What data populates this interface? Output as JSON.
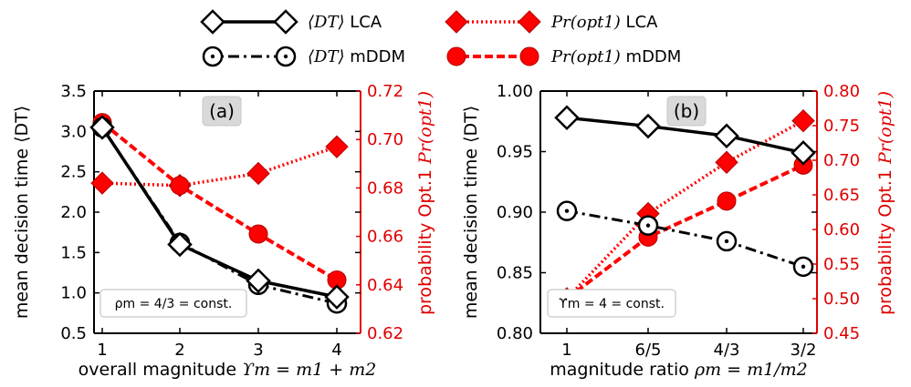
{
  "legend": {
    "items": [
      {
        "key": "dt_lca",
        "math": "⟨DT⟩",
        "suffix": " LCA",
        "color": "#000000",
        "marker": "diamond-open",
        "line": "solid"
      },
      {
        "key": "dt_mddm",
        "math": "⟨DT⟩",
        "suffix": " mDDM",
        "color": "#000000",
        "marker": "circle-open-dot",
        "line": "dashdot"
      },
      {
        "key": "pr_lca",
        "math": "Pr(opt1)",
        "suffix": " LCA",
        "color": "#ff0000",
        "marker": "diamond-filled",
        "line": "dotted"
      },
      {
        "key": "pr_mddm",
        "math": "Pr(opt1)",
        "suffix": " mDDM",
        "color": "#ff0000",
        "marker": "circle-filled",
        "line": "dashed"
      }
    ]
  },
  "chart_data": [
    {
      "type": "line",
      "panel_label": "(a)",
      "annotation": "ρm = 4/3 =  const.",
      "x_categories": [
        "1",
        "2",
        "3",
        "4"
      ],
      "xlabel_text": "overall magnitude ",
      "xlabel_math": "ϒm = m1 + m2",
      "ylabel_left": "mean decision time ⟨DT⟩",
      "ylabel_right_text": "probability Opt.1 ",
      "ylabel_right_math": "Pr(opt1)",
      "ylim_left": [
        0.5,
        3.5
      ],
      "yticks_left": [
        "0.5",
        "1.0",
        "1.5",
        "2.0",
        "2.5",
        "3.0",
        "3.5"
      ],
      "ylim_right": [
        0.62,
        0.72
      ],
      "yticks_right": [
        "0.62",
        "0.64",
        "0.66",
        "0.68",
        "0.70",
        "0.72"
      ],
      "series": [
        {
          "key": "dt_lca",
          "axis": "left",
          "values": [
            3.05,
            1.6,
            1.15,
            0.95
          ]
        },
        {
          "key": "dt_mddm",
          "axis": "left",
          "values": [
            3.05,
            1.62,
            1.1,
            0.87
          ]
        },
        {
          "key": "pr_lca",
          "axis": "right",
          "values": [
            0.682,
            0.681,
            0.686,
            0.697
          ]
        },
        {
          "key": "pr_mddm",
          "axis": "right",
          "values": [
            0.707,
            0.681,
            0.661,
            0.642
          ]
        }
      ]
    },
    {
      "type": "line",
      "panel_label": "(b)",
      "annotation": "ϒm = 4 =  const.",
      "x_categories": [
        "1",
        "6/5",
        "4/3",
        "3/2"
      ],
      "xlabel_text": "magnitude ratio ",
      "xlabel_math": "ρm = m1/m2",
      "ylabel_left": "mean decision time ⟨DT⟩",
      "ylabel_right_text": "probability Opt.1 ",
      "ylabel_right_math": "Pr(opt1)",
      "ylim_left": [
        0.8,
        1.0
      ],
      "yticks_left": [
        "0.80",
        "0.85",
        "0.90",
        "0.95",
        "1.00"
      ],
      "ylim_right": [
        0.45,
        0.8
      ],
      "yticks_right": [
        "0.45",
        "0.50",
        "0.55",
        "0.60",
        "0.65",
        "0.70",
        "0.75",
        "0.80"
      ],
      "series": [
        {
          "key": "dt_lca",
          "axis": "left",
          "values": [
            0.978,
            0.971,
            0.963,
            0.949
          ]
        },
        {
          "key": "dt_mddm",
          "axis": "left",
          "values": [
            0.901,
            0.889,
            0.876,
            0.855
          ]
        },
        {
          "key": "pr_lca",
          "axis": "right",
          "values": [
            0.5,
            0.623,
            0.697,
            0.757
          ]
        },
        {
          "key": "pr_mddm",
          "axis": "right",
          "values": [
            0.5,
            0.589,
            0.641,
            0.693
          ]
        }
      ]
    }
  ]
}
